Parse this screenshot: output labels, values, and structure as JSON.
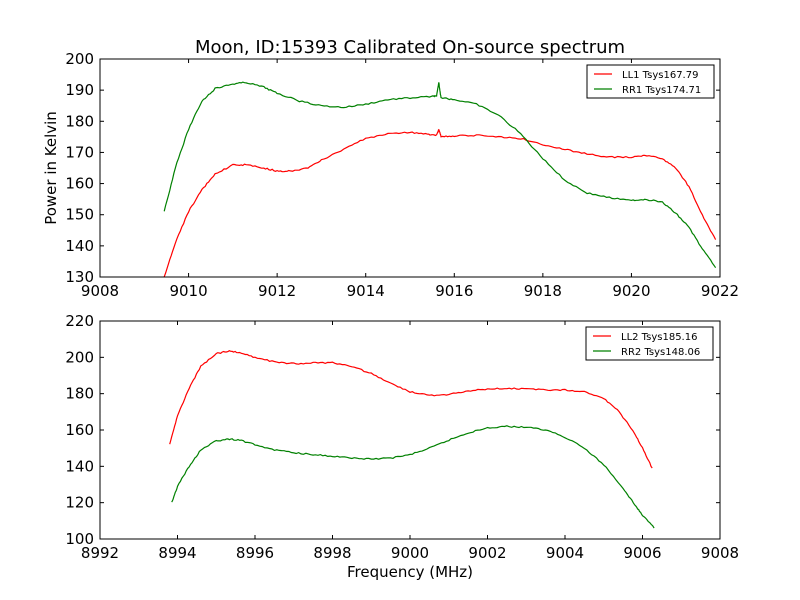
{
  "chart_data": [
    {
      "type": "line",
      "title": "Moon, ID:15393 Calibrated On-source spectrum",
      "xlabel": "",
      "ylabel": "Power in Kelvin",
      "xlim": [
        9008,
        9022
      ],
      "ylim": [
        130,
        200
      ],
      "xticks": [
        "9008",
        "9010",
        "9012",
        "9014",
        "9016",
        "9018",
        "9020",
        "9022"
      ],
      "yticks": [
        "130",
        "140",
        "150",
        "160",
        "170",
        "180",
        "190",
        "200"
      ],
      "legend_position": "top-right",
      "series": [
        {
          "name": "LL1 Tsys167.79",
          "color": "#ff0000",
          "x": [
            9009.45,
            9009.7,
            9010.0,
            9010.3,
            9010.6,
            9011.0,
            9011.3,
            9011.7,
            9012.0,
            9012.3,
            9012.7,
            9013.0,
            9013.5,
            9014.0,
            9014.5,
            9015.0,
            9015.4,
            9015.6,
            9015.65,
            9015.7,
            9016.0,
            9016.5,
            9017.0,
            9017.5,
            9018.0,
            9018.5,
            9019.0,
            9019.5,
            9020.0,
            9020.3,
            9020.7,
            9021.0,
            9021.3,
            9021.6,
            9021.9
          ],
          "y": [
            130,
            141,
            151,
            158,
            163,
            166,
            166,
            165,
            164,
            164,
            165,
            167.5,
            171,
            174.5,
            176,
            176.5,
            175.8,
            175.5,
            177.5,
            175.2,
            175.3,
            175.5,
            175,
            174.5,
            172.5,
            171,
            169.5,
            168.5,
            168.5,
            169,
            168,
            165,
            159,
            150,
            142
          ]
        },
        {
          "name": "RR1 Tsys174.71",
          "color": "#008000",
          "x": [
            9009.45,
            9009.7,
            9010.0,
            9010.3,
            9010.6,
            9011.0,
            9011.3,
            9011.7,
            9012.0,
            9012.5,
            9013.0,
            9013.5,
            9014.0,
            9014.5,
            9015.0,
            9015.5,
            9015.6,
            9015.65,
            9015.7,
            9016.0,
            9016.5,
            9017.0,
            9017.5,
            9018.0,
            9018.5,
            9019.0,
            9019.5,
            9020.0,
            9020.3,
            9020.7,
            9021.0,
            9021.3,
            9021.6,
            9021.9
          ],
          "y": [
            151,
            165,
            177.5,
            186.5,
            190.5,
            192,
            192.5,
            191,
            189,
            186.5,
            185,
            184.5,
            185.5,
            187,
            187.5,
            188,
            188,
            192.5,
            187.5,
            187,
            185.5,
            182,
            176,
            168,
            161,
            157,
            155.5,
            154.5,
            155,
            154,
            150.5,
            146,
            139,
            133
          ]
        }
      ]
    },
    {
      "type": "line",
      "title": "",
      "xlabel": "Frequency (MHz)",
      "ylabel": "",
      "xlim": [
        8992,
        9008
      ],
      "ylim": [
        100,
        220
      ],
      "xticks": [
        "8992",
        "8994",
        "8996",
        "8998",
        "9000",
        "9002",
        "9004",
        "9006",
        "9008"
      ],
      "yticks": [
        "100",
        "120",
        "140",
        "160",
        "180",
        "200",
        "220"
      ],
      "legend_position": "top-right",
      "series": [
        {
          "name": "LL2 Tsys185.16",
          "color": "#ff0000",
          "x": [
            8993.8,
            8994.0,
            8994.3,
            8994.6,
            8995.0,
            8995.3,
            8995.6,
            8996.0,
            8996.5,
            8997.0,
            8997.5,
            8998.0,
            8998.5,
            8999.0,
            8999.5,
            9000.0,
            9000.5,
            9001.0,
            9001.5,
            9002.0,
            9002.5,
            9003.0,
            9003.5,
            9004.0,
            9004.5,
            9005.0,
            9005.4,
            9005.8,
            9006.0,
            9006.25
          ],
          "y": [
            152,
            168,
            183,
            195,
            202,
            203.5,
            202.5,
            200,
            197.5,
            196.5,
            197,
            197,
            195,
            191,
            186,
            181,
            179,
            179.5,
            181.5,
            182.5,
            183,
            182.5,
            182,
            182,
            181,
            177.5,
            170,
            158,
            150,
            139
          ]
        },
        {
          "name": "RR2 Tsys148.06",
          "color": "#008000",
          "x": [
            8993.85,
            8994.0,
            8994.3,
            8994.6,
            8995.0,
            8995.3,
            8995.6,
            8996.0,
            8996.5,
            8997.0,
            8997.5,
            8998.0,
            8998.5,
            8999.0,
            8999.5,
            9000.0,
            9000.5,
            9001.0,
            9001.5,
            9002.0,
            9002.5,
            9003.0,
            9003.5,
            9004.0,
            9004.5,
            9005.0,
            9005.5,
            9005.8,
            9006.0,
            9006.3
          ],
          "y": [
            120,
            129,
            140,
            149,
            154,
            155,
            154.5,
            152,
            149,
            147.5,
            146.5,
            145.5,
            144.5,
            144,
            144.5,
            146.5,
            150,
            154.5,
            158.5,
            161,
            162,
            161.5,
            160,
            156,
            150,
            141,
            128,
            119,
            113,
            106
          ]
        }
      ]
    }
  ]
}
